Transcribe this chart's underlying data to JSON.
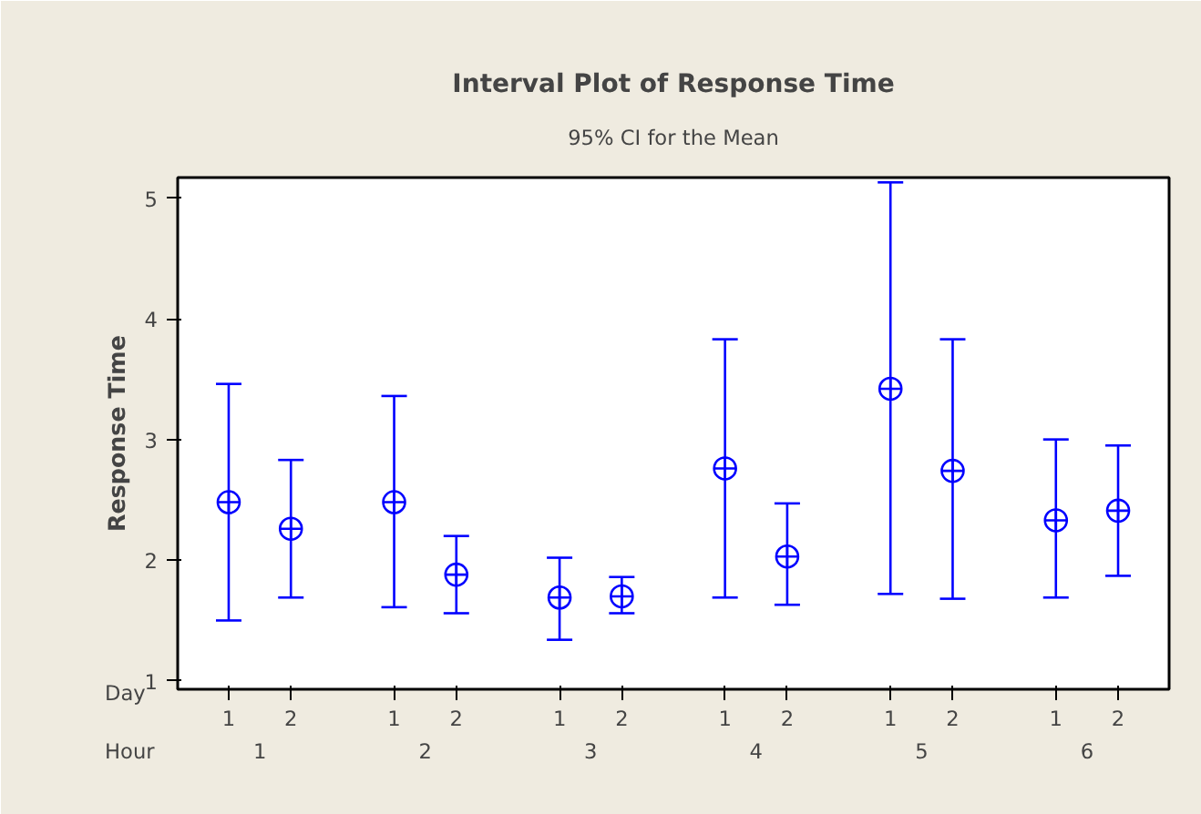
{
  "chart_data": {
    "type": "scatter",
    "title": "Interval Plot of Response Time",
    "subtitle": "95% CI for the Mean",
    "ylabel": "Response Time",
    "categories": [
      "1",
      "2",
      "1",
      "2",
      "1",
      "2",
      "1",
      "2",
      "1",
      "2",
      "1",
      "2"
    ],
    "series": [
      {
        "color": "#0000ff",
        "values": [
          2.48,
          2.26,
          2.48,
          1.88,
          1.69,
          1.7,
          2.76,
          2.03,
          3.42,
          2.74,
          2.33,
          2.41
        ],
        "errors": [
          [
            1.5,
            3.46
          ],
          [
            1.69,
            2.83
          ],
          [
            1.61,
            3.36
          ],
          [
            1.56,
            2.2
          ],
          [
            1.34,
            2.02
          ],
          [
            1.56,
            1.86
          ],
          [
            1.69,
            3.83
          ],
          [
            1.63,
            2.47
          ],
          [
            1.72,
            5.13
          ],
          [
            1.68,
            3.83
          ],
          [
            1.69,
            3.0
          ],
          [
            1.87,
            2.95
          ]
        ]
      }
    ],
    "ylim": [
      0.93,
      5.17
    ],
    "yticks": [
      1,
      2,
      3,
      4,
      5
    ],
    "grid": false,
    "marker": "circle",
    "annotations": [
      "Day",
      "Hour",
      "1",
      "2",
      "3",
      "4",
      "5",
      "6"
    ]
  }
}
